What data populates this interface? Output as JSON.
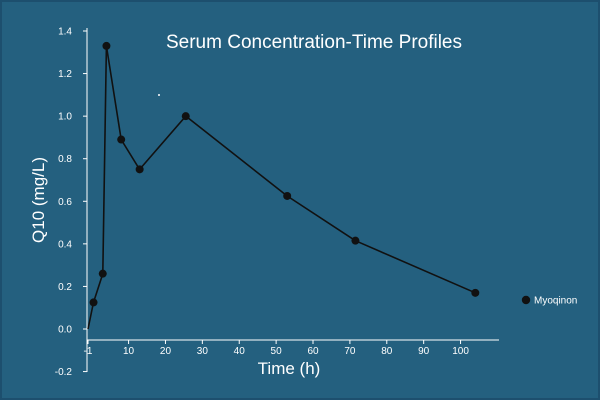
{
  "colors": {
    "background": "#24607f",
    "border": "#1d4f6e",
    "text": "#ffffff",
    "axis": "#ffffff",
    "series": "#111111"
  },
  "chart_data": {
    "type": "line",
    "title": "Serum Concentration-Time Profiles",
    "xlabel": "Time (h)",
    "ylabel": "Q10 (mg/L)",
    "xlim": [
      -1,
      105
    ],
    "ylim": [
      -0.2,
      1.4
    ],
    "x_ticks": [
      -1,
      10,
      20,
      30,
      40,
      50,
      60,
      70,
      80,
      90,
      100
    ],
    "x_tick_labels": [
      "-1",
      "10",
      "20",
      "30",
      "40",
      "50",
      "60",
      "70",
      "80",
      "90",
      "100"
    ],
    "y_ticks": [
      -0.2,
      0.0,
      0.2,
      0.4,
      0.6,
      0.8,
      1.0,
      1.2,
      1.4
    ],
    "y_tick_labels": [
      "-0.2",
      "0.0",
      "0.2",
      "0.4",
      "0.6",
      "0.8",
      "1.0",
      "1.2",
      "1.4"
    ],
    "grid": false,
    "legend_position": "right",
    "series": [
      {
        "name": "Myoqinon",
        "x": [
          -1,
          0.5,
          3,
          4,
          8,
          13,
          25.5,
          53,
          71.5,
          104
        ],
        "y": [
          0.0,
          0.125,
          0.26,
          1.33,
          0.89,
          0.75,
          1.0,
          0.625,
          0.415,
          0.17
        ]
      }
    ]
  }
}
